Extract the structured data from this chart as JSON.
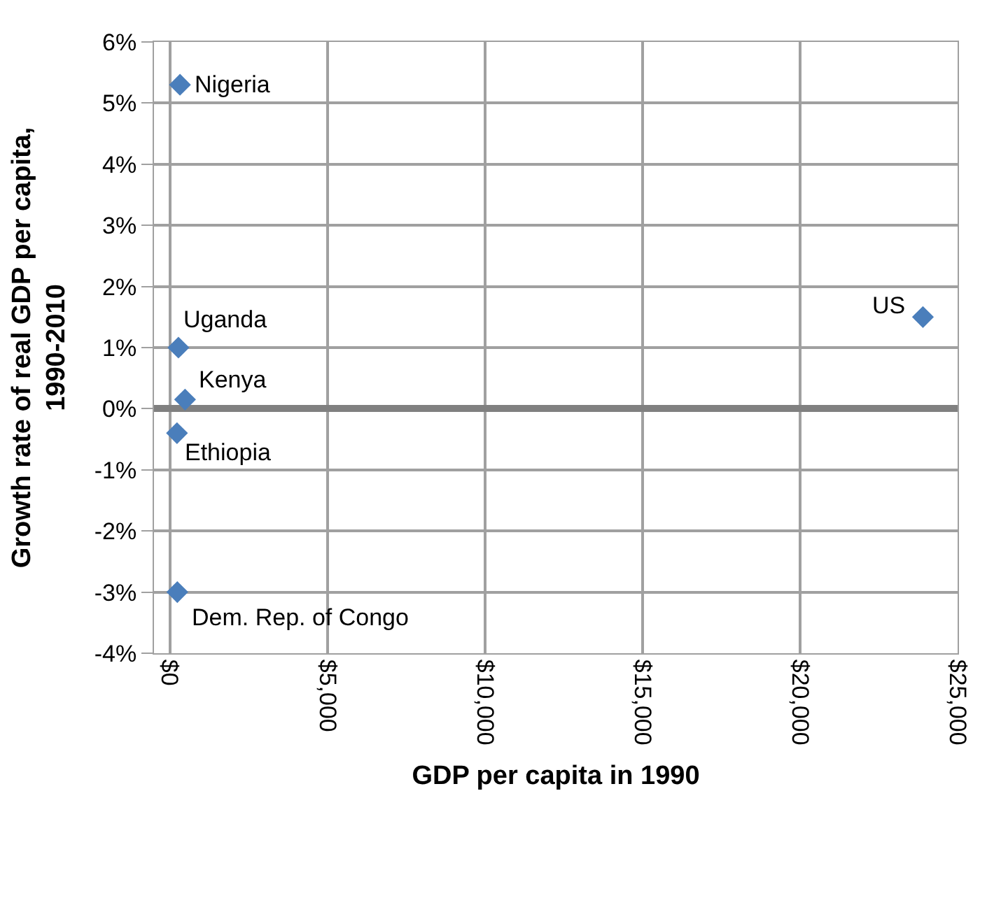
{
  "chart_data": {
    "type": "scatter",
    "xlabel": "GDP per capita in 1990",
    "ylabel": "Growth rate of real GDP per capita, 1990-2010",
    "x": [
      325,
      275,
      485,
      230,
      240,
      23900
    ],
    "series": [
      {
        "color": "#4a7ebb",
        "values": [
          5.3,
          1.0,
          0.15,
          -0.4,
          -3.0,
          1.5
        ]
      }
    ],
    "annotations": [
      {
        "text": "Nigeria",
        "x": 325,
        "y": 5.3
      },
      {
        "text": "Uganda",
        "x": 275,
        "y": 1.0
      },
      {
        "text": "Kenya",
        "x": 485,
        "y": 0.15
      },
      {
        "text": "Ethiopia",
        "x": 230,
        "y": -0.4
      },
      {
        "text": "Dem. Rep. of Congo",
        "x": 240,
        "y": -3.0
      },
      {
        "text": "US",
        "x": 23900,
        "y": 1.5
      }
    ],
    "xlim": [
      -500,
      25000
    ],
    "xticks": [
      {
        "value": 0,
        "label": "$0"
      },
      {
        "value": 5000,
        "label": "$5,000"
      },
      {
        "value": 10000,
        "label": "$10,000"
      },
      {
        "value": 15000,
        "label": "$15,000"
      },
      {
        "value": 20000,
        "label": "$20,000"
      },
      {
        "value": 25000,
        "label": "$25,000"
      }
    ],
    "ylim": [
      -4,
      6
    ],
    "yticks": [
      {
        "value": -4,
        "label": "-4%"
      },
      {
        "value": -3,
        "label": "-3%"
      },
      {
        "value": -2,
        "label": "-2%"
      },
      {
        "value": -1,
        "label": "-1%"
      },
      {
        "value": 0,
        "label": "0%"
      },
      {
        "value": 1,
        "label": "1%"
      },
      {
        "value": 2,
        "label": "2%"
      },
      {
        "value": 3,
        "label": "3%"
      },
      {
        "value": 4,
        "label": "4%"
      },
      {
        "value": 5,
        "label": "5%"
      },
      {
        "value": 6,
        "label": "6%"
      }
    ],
    "grid": true,
    "marker": "diamond"
  }
}
